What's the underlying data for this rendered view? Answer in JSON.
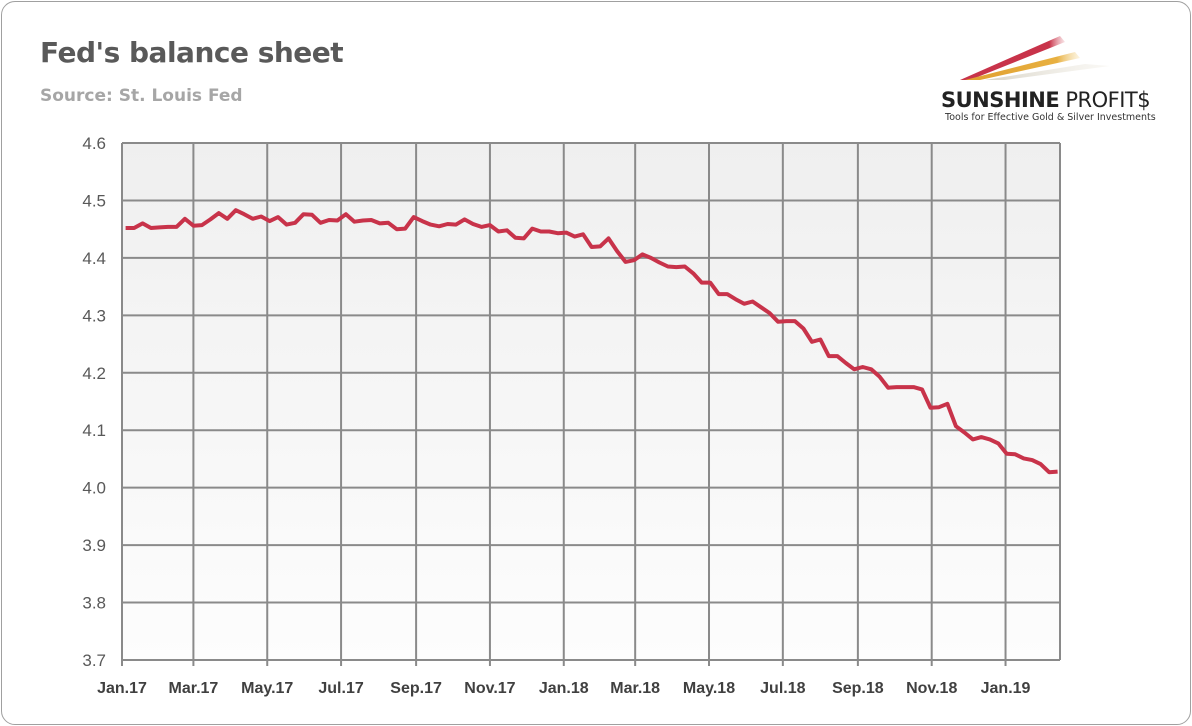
{
  "header": {
    "title": "Fed's balance sheet",
    "source": "Source: St. Louis Fed"
  },
  "logo": {
    "name_bold": "SUNSHINE",
    "name_light": "PROFIT$",
    "tagline": "Tools for Effective Gold & Silver Investments"
  },
  "colors": {
    "line": "#c8334a",
    "grid": "#8a8a8a",
    "plot_bg_top": "#efefef",
    "plot_bg_bottom": "#fdfdfd"
  },
  "chart_data": {
    "type": "line",
    "title": "Fed's balance sheet",
    "xlabel": "",
    "ylabel": "",
    "ylim": [
      3.7,
      4.6
    ],
    "xlim": [
      "2017-01-01",
      "2019-02-15"
    ],
    "grid": true,
    "legend": "none",
    "y_ticks": [
      "4.6",
      "4.5",
      "4.4",
      "4.3",
      "4.2",
      "4.1",
      "4.0",
      "3.9",
      "3.8",
      "3.7"
    ],
    "x_ticks": [
      {
        "label": "Jan.17",
        "date": "2017-01-01"
      },
      {
        "label": "Mar.17",
        "date": "2017-03-01"
      },
      {
        "label": "May.17",
        "date": "2017-05-01"
      },
      {
        "label": "Jul.17",
        "date": "2017-07-01"
      },
      {
        "label": "Sep.17",
        "date": "2017-09-01"
      },
      {
        "label": "Nov.17",
        "date": "2017-11-01"
      },
      {
        "label": "Jan.18",
        "date": "2018-01-01"
      },
      {
        "label": "Mar.18",
        "date": "2018-03-01"
      },
      {
        "label": "May.18",
        "date": "2018-05-01"
      },
      {
        "label": "Jul.18",
        "date": "2018-07-01"
      },
      {
        "label": "Sep.18",
        "date": "2018-09-01"
      },
      {
        "label": "Nov.18",
        "date": "2018-11-01"
      },
      {
        "label": "Jan.19",
        "date": "2019-01-01"
      }
    ],
    "series": [
      {
        "x": [
          "2017-01-04",
          "2017-01-11",
          "2017-01-18",
          "2017-01-25",
          "2017-02-01",
          "2017-02-08",
          "2017-02-15",
          "2017-02-22",
          "2017-03-01",
          "2017-03-08",
          "2017-03-15",
          "2017-03-22",
          "2017-03-29",
          "2017-04-05",
          "2017-04-12",
          "2017-04-19",
          "2017-04-26",
          "2017-05-03",
          "2017-05-10",
          "2017-05-17",
          "2017-05-24",
          "2017-05-31",
          "2017-06-07",
          "2017-06-14",
          "2017-06-21",
          "2017-06-28",
          "2017-07-05",
          "2017-07-12",
          "2017-07-19",
          "2017-07-26",
          "2017-08-02",
          "2017-08-09",
          "2017-08-16",
          "2017-08-23",
          "2017-08-30",
          "2017-09-06",
          "2017-09-13",
          "2017-09-20",
          "2017-09-27",
          "2017-10-04",
          "2017-10-11",
          "2017-10-18",
          "2017-10-25",
          "2017-11-01",
          "2017-11-08",
          "2017-11-15",
          "2017-11-22",
          "2017-11-29",
          "2017-12-06",
          "2017-12-13",
          "2017-12-20",
          "2017-12-27",
          "2018-01-03",
          "2018-01-10",
          "2018-01-17",
          "2018-01-24",
          "2018-01-31",
          "2018-02-07",
          "2018-02-14",
          "2018-02-21",
          "2018-02-28",
          "2018-03-07",
          "2018-03-14",
          "2018-03-21",
          "2018-03-28",
          "2018-04-04",
          "2018-04-11",
          "2018-04-18",
          "2018-04-25",
          "2018-05-02",
          "2018-05-09",
          "2018-05-16",
          "2018-05-23",
          "2018-05-30",
          "2018-06-06",
          "2018-06-13",
          "2018-06-20",
          "2018-06-27",
          "2018-07-04",
          "2018-07-11",
          "2018-07-18",
          "2018-07-25",
          "2018-08-01",
          "2018-08-08",
          "2018-08-15",
          "2018-08-22",
          "2018-08-29",
          "2018-09-05",
          "2018-09-12",
          "2018-09-19",
          "2018-09-26",
          "2018-10-03",
          "2018-10-10",
          "2018-10-17",
          "2018-10-24",
          "2018-10-31",
          "2018-11-07",
          "2018-11-14",
          "2018-11-21",
          "2018-11-28",
          "2018-12-05",
          "2018-12-12",
          "2018-12-19",
          "2018-12-26",
          "2019-01-02",
          "2019-01-09",
          "2019-01-16",
          "2019-01-23",
          "2019-01-30",
          "2019-02-06",
          "2019-02-13"
        ],
        "y": [
          4.452,
          4.452,
          4.46,
          4.452,
          4.453,
          4.454,
          4.454,
          4.468,
          4.456,
          4.457,
          4.467,
          4.478,
          4.468,
          4.483,
          4.476,
          4.468,
          4.472,
          4.464,
          4.471,
          4.458,
          4.461,
          4.476,
          4.475,
          4.461,
          4.466,
          4.465,
          4.476,
          4.463,
          4.465,
          4.466,
          4.46,
          4.461,
          4.45,
          4.451,
          4.471,
          4.464,
          4.458,
          4.455,
          4.459,
          4.458,
          4.467,
          4.459,
          4.454,
          4.457,
          4.446,
          4.448,
          4.435,
          4.434,
          4.451,
          4.446,
          4.446,
          4.443,
          4.444,
          4.437,
          4.441,
          4.419,
          4.42,
          4.434,
          4.412,
          4.393,
          4.396,
          4.406,
          4.4,
          4.392,
          4.385,
          4.384,
          4.385,
          4.373,
          4.357,
          4.357,
          4.337,
          4.337,
          4.328,
          4.32,
          4.324,
          4.314,
          4.304,
          4.289,
          4.29,
          4.29,
          4.277,
          4.254,
          4.258,
          4.229,
          4.229,
          4.217,
          4.206,
          4.21,
          4.206,
          4.193,
          4.174,
          4.175,
          4.175,
          4.175,
          4.171,
          4.139,
          4.14,
          4.146,
          4.107,
          4.096,
          4.084,
          4.088,
          4.084,
          4.077,
          4.059,
          4.058,
          4.051,
          4.048,
          4.041,
          4.027,
          4.028
        ]
      }
    ]
  }
}
